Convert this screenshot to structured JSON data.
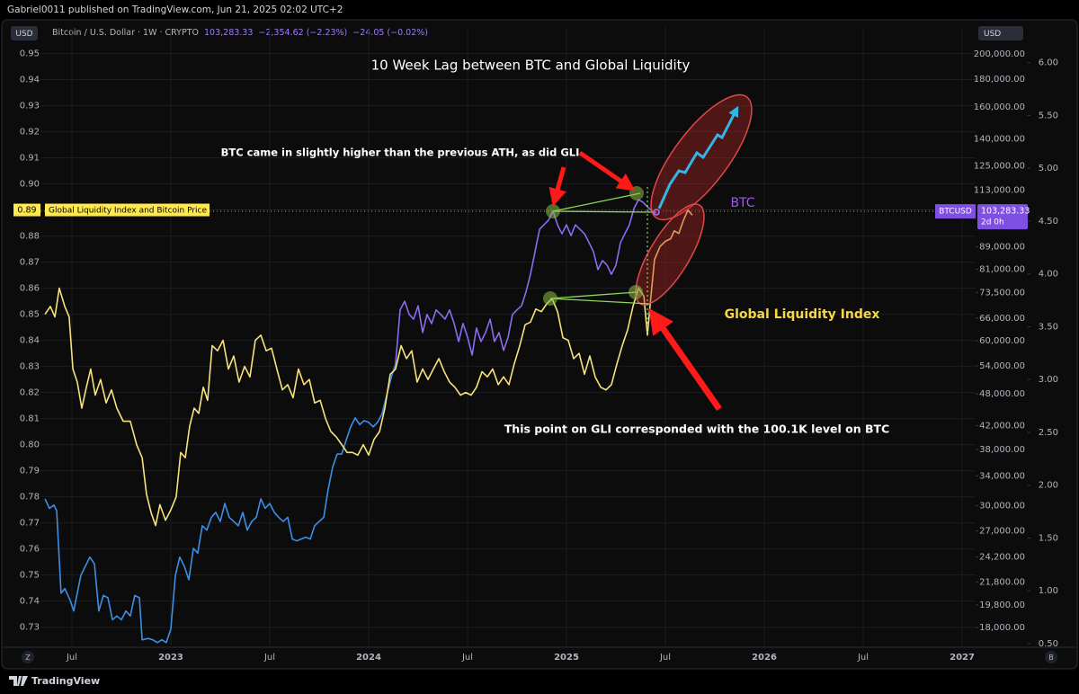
{
  "header": {
    "publisher": "Gabriel0011 published on TradingView.com, Jun 21, 2025 02:02 UTC+2",
    "currency": "USD",
    "symbol": "Bitcoin / U.S. Dollar · 1W · CRYPTO",
    "change": "−2,354.62 (−2.23%)",
    "indicator_change": "−24.05 (−0.02%)",
    "axis_buttons": [
      "Z",
      "B"
    ],
    "brand": "TradingView"
  },
  "chart_data": {
    "type": "line",
    "title": "10 Week Lag between BTC and Global Liquidity",
    "annotations": [
      "BTC came in slightly higher than the previous ATH, as did GLI",
      "This point on GLI corresponded with the 100.1K level on BTC"
    ],
    "indicator_label": "Global Liquidity Index and Bitcoin Price",
    "indicator_last": 0.89,
    "last_price": {
      "value": 103283.33,
      "label": "103,283.33"
    },
    "last_symbol": "BTCUSD",
    "countdown": "2d 0h",
    "grid": true,
    "y2log": true,
    "xlim": [
      2022.341,
      2027.068
    ],
    "xticks": [
      {
        "value": 2022.5,
        "label": "Jul"
      },
      2023,
      {
        "value": 2023.5,
        "label": "Jul"
      },
      2024,
      {
        "value": 2024.5,
        "label": "Jul"
      },
      2025,
      {
        "value": 2025.5,
        "label": "Jul"
      },
      2026,
      {
        "value": 2026.5,
        "label": "Jul"
      },
      2027
    ],
    "ylim": [
      0.723,
      0.955
    ],
    "yticks": [
      0.95,
      0.94,
      0.93,
      0.92,
      0.91,
      {
        "value": 0.9,
        "label": "0.90"
      },
      0.89,
      0.88,
      0.87,
      0.86,
      0.85,
      0.84,
      0.83,
      0.82,
      0.81,
      {
        "value": 0.8,
        "label": "0.80"
      },
      0.79,
      0.78,
      0.77,
      0.76,
      0.75,
      0.74,
      0.73
    ],
    "y2lim": [
      16700,
      211600
    ],
    "y2ticks": [
      {
        "value": 200000,
        "label": "200,000.00"
      },
      {
        "value": 180000,
        "label": "180,000.00"
      },
      {
        "value": 160000,
        "label": "160,000.00"
      },
      {
        "value": 140000,
        "label": "140,000.00"
      },
      {
        "value": 125000,
        "label": "125,000.00"
      },
      {
        "value": 113000,
        "label": "113,000.00"
      },
      {
        "value": 89000,
        "label": "89,000.00"
      },
      {
        "value": 81000,
        "label": "81,000.00"
      },
      {
        "value": 73500,
        "label": "73,500.00"
      },
      {
        "value": 66000,
        "label": "66,000.00"
      },
      {
        "value": 60000,
        "label": "60,000.00"
      },
      {
        "value": 54000,
        "label": "54,000.00"
      },
      {
        "value": 48000,
        "label": "48,000.00"
      },
      {
        "value": 42000,
        "label": "42,000.00"
      },
      {
        "value": 38000,
        "label": "38,000.00"
      },
      {
        "value": 34000,
        "label": "34,000.00"
      },
      {
        "value": 30000,
        "label": "30,000.00"
      },
      {
        "value": 27000,
        "label": "27,000.00"
      },
      {
        "value": 24200,
        "label": "24,200.00"
      },
      {
        "value": 21800,
        "label": "21,800.00"
      },
      {
        "value": 19800,
        "label": "19,800.00"
      },
      {
        "value": 18000,
        "label": "18,000.00"
      }
    ],
    "y3lim": [
      0.483,
      6.21
    ],
    "y3ticks": [
      {
        "value": 6,
        "label": "6.00"
      },
      {
        "value": 5.5,
        "label": "5.50"
      },
      {
        "value": 5,
        "label": "5.00"
      },
      {
        "value": 4.5,
        "label": "4.50"
      },
      {
        "value": 4,
        "label": "4.00"
      },
      {
        "value": 3.5,
        "label": "3.50"
      },
      {
        "value": 3,
        "label": "3.00"
      },
      {
        "value": 2.5,
        "label": "2.50"
      },
      {
        "value": 2,
        "label": "2.00"
      },
      {
        "value": 1.5,
        "label": "1.50"
      },
      {
        "value": 1,
        "label": "1.00"
      },
      {
        "value": 0.5,
        "label": "0.50"
      }
    ],
    "series": [
      {
        "color": "#3d8fe6",
        "axis": "y2",
        "x": [
          2022.364,
          2022.386,
          2022.409,
          2022.423,
          2022.445,
          2022.464,
          2022.491,
          2022.509,
          2022.527,
          2022.545,
          2022.568,
          2022.591,
          2022.614,
          2022.636,
          2022.659,
          2022.682,
          2022.705,
          2022.727,
          2022.75,
          2022.773,
          2022.795,
          2022.818,
          2022.841,
          2022.855,
          2022.886,
          2022.909,
          2022.932,
          2022.955,
          2022.977,
          2023.0,
          2023.023,
          2023.045,
          2023.068,
          2023.091,
          2023.114,
          2023.136,
          2023.159,
          2023.182,
          2023.205,
          2023.227,
          2023.25,
          2023.273,
          2023.295,
          2023.318,
          2023.341,
          2023.364,
          2023.386,
          2023.409,
          2023.432,
          2023.455,
          2023.477,
          2023.5,
          2023.523,
          2023.545,
          2023.568,
          2023.591,
          2023.614,
          2023.636,
          2023.659,
          2023.682,
          2023.705,
          2023.727,
          2023.75,
          2023.773,
          2023.795,
          2023.818,
          2023.841,
          2023.864,
          2023.886,
          2023.909,
          2023.932,
          2023.955,
          2023.977,
          2024.0,
          2024.023,
          2024.045,
          2024.068,
          2024.091,
          2024.114,
          2024.136
        ],
        "values": [
          30900,
          29700,
          30100,
          29400,
          20800,
          21200,
          20200,
          19300,
          20800,
          22400,
          23300,
          24200,
          23500,
          19300,
          20600,
          20400,
          18600,
          18900,
          18600,
          19300,
          18900,
          20600,
          20400,
          17100,
          17200,
          17100,
          16900,
          17100,
          16900,
          17900,
          22400,
          24200,
          23300,
          22000,
          25100,
          24600,
          27600,
          27100,
          28600,
          29200,
          28100,
          30300,
          28600,
          28100,
          27600,
          29200,
          27100,
          28100,
          28600,
          30900,
          29700,
          30300,
          29200,
          28600,
          28100,
          28600,
          26100,
          25900,
          26100,
          26300,
          26100,
          27600,
          28100,
          28600,
          32100,
          35300,
          37300,
          37300,
          39500,
          41800,
          43400,
          42200,
          42900,
          42600,
          41800,
          42600,
          44200,
          47700,
          51400,
          54400
        ]
      },
      {
        "name": "BTC",
        "color": "#8c6cf0",
        "axis": "y2",
        "x": [
          2024.136,
          2024.159,
          2024.182,
          2024.205,
          2024.227,
          2024.25,
          2024.273,
          2024.295,
          2024.318,
          2024.341,
          2024.364,
          2024.386,
          2024.409,
          2024.432,
          2024.455,
          2024.477,
          2024.5,
          2024.523,
          2024.545,
          2024.568,
          2024.591,
          2024.614,
          2024.636,
          2024.659,
          2024.682,
          2024.705,
          2024.727,
          2024.75,
          2024.773,
          2024.795,
          2024.818,
          2024.841,
          2024.864,
          2024.886,
          2024.909,
          2024.932,
          2024.955,
          2024.977,
          2025.0,
          2025.023,
          2025.045,
          2025.068,
          2025.091,
          2025.114,
          2025.136,
          2025.159,
          2025.182,
          2025.205,
          2025.227,
          2025.25,
          2025.273,
          2025.295,
          2025.318,
          2025.341,
          2025.364,
          2025.386,
          2025.409,
          2025.432,
          2025.455
        ],
        "values": [
          54400,
          68300,
          70800,
          67000,
          65700,
          69500,
          62100,
          67000,
          64500,
          68300,
          67000,
          65700,
          68300,
          64500,
          59800,
          64500,
          60900,
          56500,
          63300,
          59800,
          62100,
          65700,
          59800,
          62100,
          57600,
          60900,
          67000,
          68300,
          69500,
          73600,
          79300,
          87200,
          95800,
          97600,
          99500,
          103400,
          97600,
          94000,
          97600,
          93300,
          97600,
          95800,
          94000,
          90600,
          87200,
          80900,
          84000,
          82400,
          79300,
          82400,
          90600,
          94000,
          97600,
          104500,
          108500,
          107300,
          105300,
          103400,
          102600
        ]
      },
      {
        "name": "Global Liquidity Index",
        "color": "#f7e27b",
        "axis": "y",
        "x": [
          2022.364,
          2022.391,
          2022.414,
          2022.436,
          2022.464,
          2022.486,
          2022.505,
          2022.527,
          2022.55,
          2022.573,
          2022.595,
          2022.618,
          2022.645,
          2022.673,
          2022.7,
          2022.727,
          2022.759,
          2022.795,
          2022.827,
          2022.855,
          2022.877,
          2022.9,
          2022.923,
          2022.945,
          2022.973,
          2023.0,
          2023.027,
          2023.05,
          2023.073,
          2023.095,
          2023.118,
          2023.141,
          2023.164,
          2023.186,
          2023.209,
          2023.236,
          2023.264,
          2023.291,
          2023.318,
          2023.345,
          2023.373,
          2023.4,
          2023.427,
          2023.455,
          2023.482,
          2023.509,
          2023.536,
          2023.564,
          2023.591,
          2023.618,
          2023.645,
          2023.673,
          2023.7,
          2023.727,
          2023.755,
          2023.782,
          2023.809,
          2023.836,
          2023.864,
          2023.891,
          2023.918,
          2023.945,
          2023.973,
          2024.0,
          2024.027,
          2024.055,
          2024.082,
          2024.109,
          2024.136,
          2024.164,
          2024.191,
          2024.218,
          2024.245,
          2024.273,
          2024.3,
          2024.327,
          2024.355,
          2024.382,
          2024.409,
          2024.436,
          2024.464,
          2024.491,
          2024.518,
          2024.545,
          2024.573,
          2024.6,
          2024.627,
          2024.655,
          2024.682,
          2024.709,
          2024.736,
          2024.764,
          2024.791,
          2024.818,
          2024.845,
          2024.873,
          2024.9,
          2024.927,
          2024.955,
          2024.982,
          2025.009,
          2025.036,
          2025.064,
          2025.091,
          2025.118,
          2025.145,
          2025.173,
          2025.2,
          2025.227,
          2025.255,
          2025.282,
          2025.309,
          2025.336,
          2025.364,
          2025.391,
          2025.409,
          2025.427,
          2025.445,
          2025.473,
          2025.5,
          2025.527,
          2025.545,
          2025.568,
          2025.591,
          2025.614,
          2025.636
        ],
        "values": [
          0.85,
          0.853,
          0.849,
          0.86,
          0.853,
          0.849,
          0.829,
          0.824,
          0.814,
          0.822,
          0.829,
          0.819,
          0.825,
          0.816,
          0.821,
          0.814,
          0.809,
          0.809,
          0.8,
          0.795,
          0.781,
          0.774,
          0.769,
          0.777,
          0.771,
          0.775,
          0.78,
          0.797,
          0.795,
          0.807,
          0.814,
          0.812,
          0.822,
          0.817,
          0.838,
          0.836,
          0.84,
          0.829,
          0.834,
          0.824,
          0.83,
          0.826,
          0.84,
          0.842,
          0.836,
          0.837,
          0.829,
          0.821,
          0.823,
          0.818,
          0.829,
          0.823,
          0.825,
          0.816,
          0.817,
          0.81,
          0.805,
          0.803,
          0.8,
          0.797,
          0.797,
          0.796,
          0.8,
          0.796,
          0.802,
          0.805,
          0.814,
          0.827,
          0.829,
          0.838,
          0.833,
          0.836,
          0.824,
          0.829,
          0.825,
          0.829,
          0.833,
          0.828,
          0.824,
          0.822,
          0.819,
          0.82,
          0.819,
          0.822,
          0.828,
          0.826,
          0.829,
          0.823,
          0.826,
          0.823,
          0.831,
          0.838,
          0.846,
          0.847,
          0.852,
          0.851,
          0.854,
          0.856,
          0.851,
          0.841,
          0.84,
          0.833,
          0.835,
          0.827,
          0.834,
          0.826,
          0.822,
          0.821,
          0.823,
          0.831,
          0.838,
          0.844,
          0.853,
          0.86,
          0.857,
          0.842,
          0.857,
          0.871,
          0.876,
          0.878,
          0.879,
          0.882,
          0.881,
          0.886,
          0.89,
          0.888
        ]
      }
    ]
  }
}
